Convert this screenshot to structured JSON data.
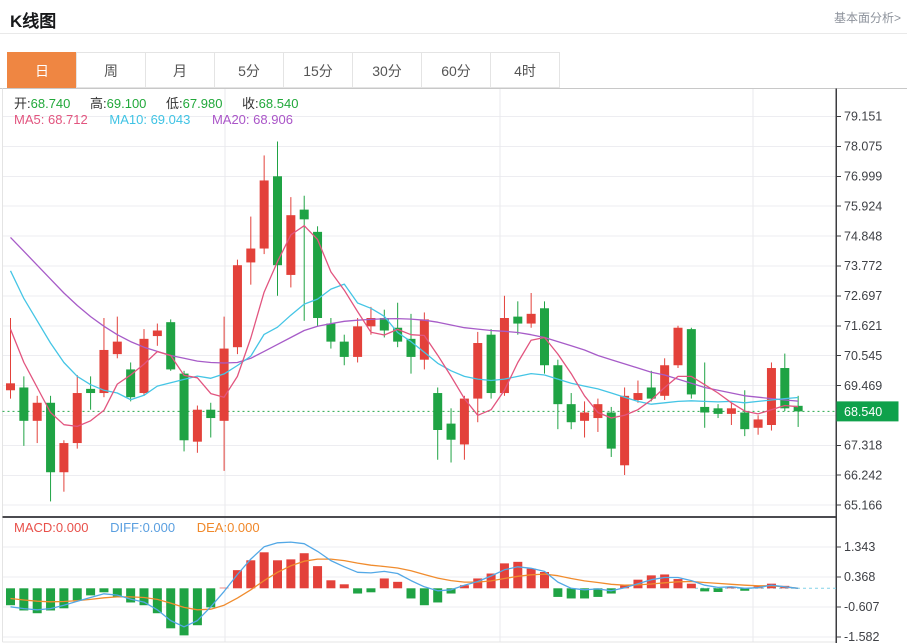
{
  "header": {
    "title": "K线图",
    "link": "基本面分析>"
  },
  "tabs": {
    "items": [
      "日",
      "周",
      "月",
      "5分",
      "15分",
      "30分",
      "60分",
      "4时"
    ],
    "selected": "日"
  },
  "info": {
    "ohlc": [
      {
        "label": "开:",
        "value": "68.740"
      },
      {
        "label": "高:",
        "value": "69.100"
      },
      {
        "label": "低:",
        "value": "67.980"
      },
      {
        "label": "收:",
        "value": "68.540"
      }
    ],
    "ma": [
      {
        "label": "MA5:",
        "value": "68.712"
      },
      {
        "label": "MA10:",
        "value": "69.043"
      },
      {
        "label": "MA20:",
        "value": "68.906"
      }
    ]
  },
  "macd_legend": [
    {
      "label": "MACD:",
      "value": "0.000"
    },
    {
      "label": "DIFF:",
      "value": "0.000"
    },
    {
      "label": "DEA:",
      "value": "0.000"
    }
  ],
  "chart_data": {
    "type": "candlestick",
    "title": "K线图 日线",
    "price_axis_ticks": [
      79.151,
      78.075,
      76.999,
      75.924,
      74.848,
      73.772,
      72.697,
      71.621,
      70.545,
      69.469,
      67.318,
      66.242,
      65.166
    ],
    "price_axis_range": [
      65.166,
      79.151
    ],
    "current_price": "68.540",
    "current_price_value": 68.54,
    "macd_axis_ticks": [
      1.343,
      0.368,
      -0.607,
      -1.582
    ],
    "candles": {
      "open": [
        69.3,
        69.4,
        68.2,
        68.85,
        66.35,
        67.4,
        69.35,
        69.2,
        70.6,
        70.05,
        69.2,
        71.25,
        71.75,
        69.9,
        67.45,
        68.6,
        68.2,
        70.85,
        73.9,
        74.4,
        77.0,
        73.45,
        75.8,
        75.0,
        71.7,
        71.05,
        70.5,
        71.6,
        71.9,
        71.55,
        71.15,
        70.4,
        69.2,
        68.1,
        67.35,
        69.0,
        71.3,
        69.2,
        71.95,
        71.7,
        72.25,
        70.2,
        68.8,
        68.2,
        68.3,
        68.5,
        66.6,
        68.95,
        69.4,
        69.1,
        70.2,
        71.5,
        68.7,
        68.65,
        68.45,
        68.5,
        67.95,
        68.05,
        70.1,
        68.74
      ],
      "high": [
        71.9,
        69.8,
        69.1,
        69.1,
        67.5,
        69.85,
        69.8,
        71.9,
        71.95,
        70.3,
        71.5,
        71.7,
        71.85,
        70.0,
        68.75,
        68.85,
        71.95,
        74.0,
        75.55,
        77.75,
        78.25,
        76.25,
        76.3,
        75.2,
        71.9,
        71.3,
        71.9,
        72.3,
        72.2,
        72.45,
        72.05,
        72.1,
        69.4,
        68.65,
        69.1,
        71.4,
        71.5,
        72.7,
        72.5,
        72.8,
        72.5,
        70.4,
        69.2,
        68.9,
        69.0,
        68.7,
        69.4,
        69.65,
        70.0,
        70.45,
        71.62,
        71.55,
        70.3,
        68.8,
        68.85,
        69.3,
        68.4,
        70.3,
        70.62,
        69.1
      ],
      "low": [
        69.0,
        67.3,
        67.4,
        65.3,
        65.65,
        67.2,
        68.6,
        69.05,
        70.45,
        68.9,
        69.1,
        70.9,
        70.0,
        67.1,
        67.05,
        67.6,
        66.4,
        70.6,
        73.1,
        74.2,
        72.7,
        73.0,
        71.8,
        71.6,
        70.8,
        70.2,
        70.3,
        71.3,
        71.2,
        70.85,
        69.9,
        70.05,
        66.8,
        66.7,
        66.8,
        68.15,
        69.0,
        69.1,
        71.3,
        71.55,
        69.9,
        67.9,
        67.9,
        67.6,
        67.8,
        66.9,
        66.25,
        68.85,
        68.9,
        68.95,
        70.1,
        69.0,
        67.95,
        68.3,
        68.05,
        67.65,
        67.7,
        67.85,
        68.55,
        67.98
      ],
      "close": [
        69.55,
        68.2,
        68.85,
        66.35,
        67.4,
        69.2,
        69.2,
        70.75,
        71.05,
        69.05,
        71.15,
        71.45,
        70.05,
        67.5,
        68.6,
        68.3,
        70.8,
        73.8,
        74.4,
        76.85,
        73.8,
        75.6,
        75.45,
        71.9,
        71.05,
        70.5,
        71.6,
        71.9,
        71.45,
        71.05,
        70.5,
        71.85,
        67.87,
        67.52,
        69.0,
        71.0,
        69.2,
        71.9,
        71.7,
        72.05,
        70.2,
        68.8,
        68.15,
        68.5,
        68.8,
        67.2,
        69.1,
        69.2,
        69.0,
        70.2,
        71.55,
        69.15,
        68.5,
        68.45,
        68.65,
        67.9,
        68.25,
        70.1,
        68.65,
        68.54
      ]
    },
    "ma5": [
      71.5,
      70.3,
      69.4,
      68.5,
      68.06,
      68.0,
      68.2,
      68.58,
      69.52,
      69.85,
      70.24,
      70.69,
      70.55,
      69.84,
      69.75,
      69.18,
      69.05,
      69.8,
      71.18,
      72.83,
      73.93,
      74.89,
      75.22,
      74.72,
      73.56,
      72.9,
      72.13,
      71.39,
      71.29,
      71.49,
      71.3,
      71.27,
      70.56,
      69.8,
      69.0,
      68.4,
      68.6,
      69.3,
      70.3,
      71.1,
      71.2,
      70.6,
      69.9,
      69.1,
      68.5,
      68.3,
      68.4,
      68.6,
      68.95,
      69.4,
      69.8,
      69.8,
      69.5,
      69.2,
      68.85,
      68.55,
      68.45,
      68.6,
      68.75,
      68.71
    ],
    "ma10": [
      73.6,
      72.6,
      71.8,
      71.0,
      70.3,
      69.8,
      69.5,
      69.3,
      69.2,
      68.96,
      69.12,
      69.45,
      69.57,
      69.69,
      69.81,
      69.73,
      69.89,
      70.19,
      70.53,
      71.31,
      71.57,
      72.0,
      72.4,
      72.58,
      72.94,
      73.12,
      72.44,
      72.25,
      71.96,
      71.38,
      71.05,
      70.67,
      70.27,
      70.0,
      69.8,
      69.7,
      69.65,
      69.7,
      69.8,
      69.9,
      69.85,
      69.7,
      69.55,
      69.45,
      69.35,
      69.2,
      69.05,
      68.9,
      68.8,
      68.85,
      68.9,
      68.92,
      68.9,
      68.88,
      68.9,
      68.85,
      68.9,
      68.95,
      69.0,
      69.04
    ],
    "ma20": [
      74.8,
      74.3,
      73.8,
      73.3,
      72.8,
      72.35,
      71.95,
      71.6,
      71.3,
      71.05,
      70.85,
      70.7,
      70.55,
      70.45,
      70.35,
      70.3,
      70.28,
      70.3,
      70.45,
      70.7,
      70.95,
      71.2,
      71.45,
      71.6,
      71.7,
      71.78,
      71.82,
      71.85,
      71.87,
      71.88,
      71.86,
      71.82,
      71.75,
      71.65,
      71.55,
      71.5,
      71.45,
      71.42,
      71.38,
      71.3,
      71.2,
      71.05,
      70.9,
      70.75,
      70.55,
      70.4,
      70.25,
      70.1,
      69.95,
      69.85,
      69.7,
      69.55,
      69.4,
      69.3,
      69.2,
      69.1,
      69.05,
      69.0,
      68.95,
      68.91
    ],
    "macd": {
      "hist": [
        -0.55,
        -0.72,
        -0.81,
        -0.72,
        -0.65,
        -0.39,
        -0.23,
        -0.13,
        -0.29,
        -0.46,
        -0.55,
        -0.81,
        -1.3,
        -1.53,
        -1.2,
        -0.62,
        0.02,
        0.59,
        0.91,
        1.17,
        0.91,
        0.94,
        1.14,
        0.72,
        0.26,
        0.13,
        -0.17,
        -0.13,
        0.32,
        0.21,
        -0.33,
        -0.55,
        -0.46,
        -0.17,
        0.1,
        0.32,
        0.48,
        0.81,
        0.86,
        0.64,
        0.53,
        -0.28,
        -0.33,
        -0.33,
        -0.28,
        -0.17,
        0.1,
        0.28,
        0.42,
        0.45,
        0.3,
        0.15,
        -0.1,
        -0.12,
        0.05,
        -0.08,
        0.06,
        0.15,
        0.08,
        0.0
      ],
      "diff": [
        -0.6,
        -0.66,
        -0.7,
        -0.66,
        -0.55,
        -0.42,
        -0.3,
        -0.18,
        -0.22,
        -0.35,
        -0.45,
        -0.7,
        -1.05,
        -1.25,
        -1.05,
        -0.6,
        -0.1,
        0.45,
        0.95,
        1.35,
        1.48,
        1.5,
        1.45,
        1.2,
        0.9,
        0.7,
        0.52,
        0.5,
        0.55,
        0.48,
        0.25,
        0.05,
        -0.08,
        -0.05,
        0.1,
        0.22,
        0.4,
        0.6,
        0.7,
        0.65,
        0.55,
        0.2,
        0.0,
        -0.05,
        -0.02,
        -0.08,
        0.02,
        0.15,
        0.28,
        0.35,
        0.35,
        0.25,
        0.1,
        0.03,
        0.05,
        0.0,
        0.02,
        0.1,
        0.05,
        0.0
      ],
      "dea": [
        -0.33,
        -0.38,
        -0.42,
        -0.44,
        -0.43,
        -0.4,
        -0.36,
        -0.31,
        -0.28,
        -0.28,
        -0.3,
        -0.36,
        -0.48,
        -0.62,
        -0.7,
        -0.68,
        -0.55,
        -0.32,
        -0.05,
        0.25,
        0.52,
        0.73,
        0.88,
        0.95,
        0.95,
        0.9,
        0.82,
        0.75,
        0.71,
        0.66,
        0.57,
        0.45,
        0.33,
        0.25,
        0.2,
        0.2,
        0.24,
        0.32,
        0.39,
        0.44,
        0.46,
        0.41,
        0.32,
        0.24,
        0.19,
        0.13,
        0.1,
        0.11,
        0.14,
        0.18,
        0.21,
        0.22,
        0.19,
        0.16,
        0.13,
        0.1,
        0.08,
        0.08,
        0.05,
        0.0
      ]
    },
    "colors": {
      "up": "#e3413a",
      "down": "#1fa344",
      "ma5": "#e2557f",
      "ma10": "#45c5e5",
      "ma20": "#a75cc8",
      "diff": "#53a8e6",
      "dea": "#f08c2e",
      "price_tag": "#0fa14b",
      "tab_active": "#ef8642",
      "ohlc_value": "#21a83a"
    },
    "legend_position": "top-left",
    "grid": true
  }
}
